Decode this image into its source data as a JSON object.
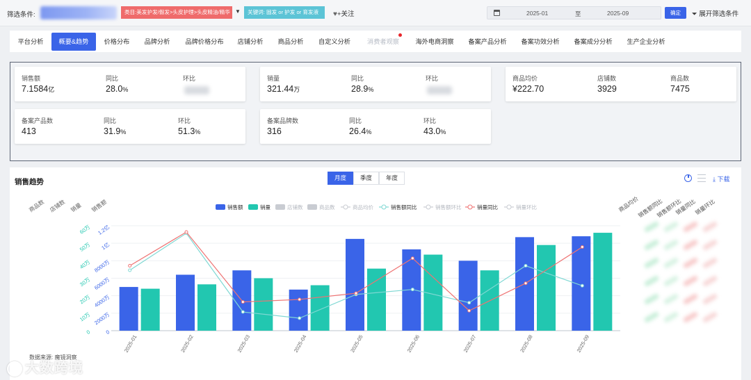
{
  "filter": {
    "label": "筛选条件:",
    "category_chip": "类目:美发护发/假发>头皮护理>头皮精油/精华",
    "keyword_chip": "关键词: 固发 or 护发 or 育发液",
    "follow": "+关注",
    "date_start": "2025-01",
    "date_sep": "至",
    "date_end": "2025-09",
    "confirm": "确定",
    "expand": "展开筛选条件"
  },
  "tabs": [
    {
      "label": "平台分析"
    },
    {
      "label": "概要&趋势"
    },
    {
      "label": "价格分布"
    },
    {
      "label": "品牌分析"
    },
    {
      "label": "品牌价格分布"
    },
    {
      "label": "店铺分析"
    },
    {
      "label": "商品分析"
    },
    {
      "label": "自定义分析"
    },
    {
      "label": "消费者观察"
    },
    {
      "label": "海外电商洞察"
    },
    {
      "label": "备案产品分析"
    },
    {
      "label": "备案功效分析"
    },
    {
      "label": "备案成分分析"
    },
    {
      "label": "生产企业分析"
    }
  ],
  "kpis": {
    "sales": {
      "label": "销售额",
      "value": "7.1584",
      "unit": "亿",
      "yoy_label": "同比",
      "yoy": "28.0",
      "yoy_unit": "%",
      "mom_label": "环比"
    },
    "volume": {
      "label": "销量",
      "value": "321.44",
      "unit": "万",
      "yoy_label": "同比",
      "yoy": "28.9",
      "yoy_unit": "%",
      "mom_label": "环比"
    },
    "avg_price": {
      "label": "商品均价",
      "value": "¥222.70",
      "stores_label": "店铺数",
      "stores": "3929",
      "items_label": "商品数",
      "items": "7475"
    },
    "registered_products": {
      "label": "备案产品数",
      "value": "413",
      "yoy_label": "同比",
      "yoy": "31.9",
      "yoy_unit": "%",
      "mom_label": "环比",
      "mom": "51.3",
      "mom_unit": "%"
    },
    "registered_brands": {
      "label": "备案品牌数",
      "value": "316",
      "yoy_label": "同比",
      "yoy": "26.4",
      "yoy_unit": "%",
      "mom_label": "环比",
      "mom": "43.0",
      "mom_unit": "%"
    }
  },
  "trend": {
    "title": "销售趋势",
    "periods": [
      "月度",
      "季度",
      "年度"
    ],
    "active_period": "月度",
    "download": "下载",
    "source": "数据来源: 魔镜洞察",
    "left_axis_names": [
      "商品数",
      "店铺数",
      "销量",
      "销售额"
    ],
    "right_col_heads": [
      "商品均价",
      "销售额同比",
      "销售额环比",
      "销量同比",
      "销量环比"
    ]
  },
  "watermark": "大数跨境",
  "colors": {
    "accent": "#3a64e8",
    "sales_bar": "#3a64e8",
    "volume_bar": "#22c7b0",
    "sales_yoy": "#7fd8d3",
    "volume_yoy": "#ef7373"
  },
  "chart_data": {
    "type": "bar",
    "categories": [
      "2025-01",
      "2025-02",
      "2025-03",
      "2025-04",
      "2025-05",
      "2025-06",
      "2025-07",
      "2025-08",
      "2025-09"
    ],
    "legend": [
      "销售额",
      "销量",
      "店铺数",
      "商品数",
      "商品均价",
      "销售额同比",
      "销售额环比",
      "销量同比",
      "销量环比"
    ],
    "series": [
      {
        "name": "销售额",
        "kind": "bar",
        "axis": "sales",
        "values": [
          50000000,
          64000000,
          69000000,
          47000000,
          105000000,
          93000000,
          80000000,
          107000000,
          108000000
        ]
      },
      {
        "name": "销量",
        "kind": "bar",
        "axis": "volume",
        "values": [
          240000,
          265000,
          300000,
          260000,
          355000,
          435000,
          345000,
          490000,
          560000
        ]
      },
      {
        "name": "销售额同比",
        "kind": "line",
        "values": [
          -0.18,
          1.3,
          -1.85,
          -2.1,
          -1.15,
          -0.95,
          -1.48,
          0.0,
          -0.8
        ]
      },
      {
        "name": "销量同比",
        "kind": "line",
        "values": [
          0.0,
          1.35,
          -1.45,
          -1.35,
          -1.1,
          0.3,
          -1.8,
          -0.7,
          0.75
        ]
      }
    ],
    "sales_axis": {
      "ticks": [
        "0",
        "2000万",
        "4000万",
        "6000万",
        "8000万",
        "1亿",
        "1.2亿"
      ],
      "ylim": [
        0,
        120000000
      ]
    },
    "volume_axis": {
      "ticks": [
        "0",
        "10万",
        "20万",
        "30万",
        "40万",
        "50万",
        "60万"
      ],
      "ylim": [
        0,
        600000
      ]
    },
    "rate_axis": {
      "ylim": [
        -2.6,
        1.6
      ]
    }
  }
}
